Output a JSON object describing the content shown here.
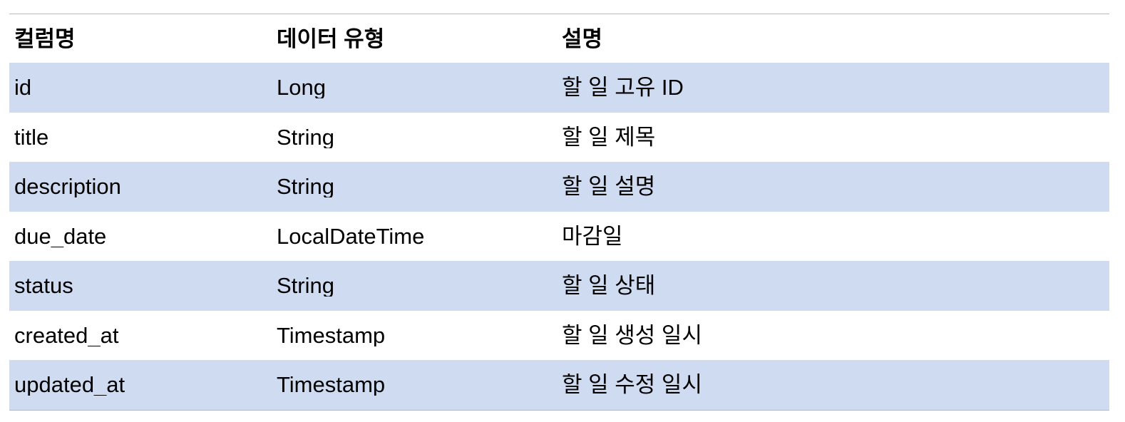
{
  "table": {
    "headers": [
      "컬럼명",
      "데이터 유형",
      "설명"
    ],
    "rows": [
      [
        "id",
        "Long",
        "할 일 고유 ID"
      ],
      [
        "title",
        "String",
        "할 일 제목"
      ],
      [
        "description",
        "String",
        "할 일 설명"
      ],
      [
        "due_date",
        "LocalDateTime",
        "마감일"
      ],
      [
        "status",
        "String",
        "할 일 상태"
      ],
      [
        "created_at",
        "Timestamp",
        "할 일 생성 일시"
      ],
      [
        "updated_at",
        "Timestamp",
        "할 일 수정 일시"
      ]
    ],
    "colors": {
      "stripe": "#cfdbf1",
      "rule": "#a9b9d6"
    }
  }
}
